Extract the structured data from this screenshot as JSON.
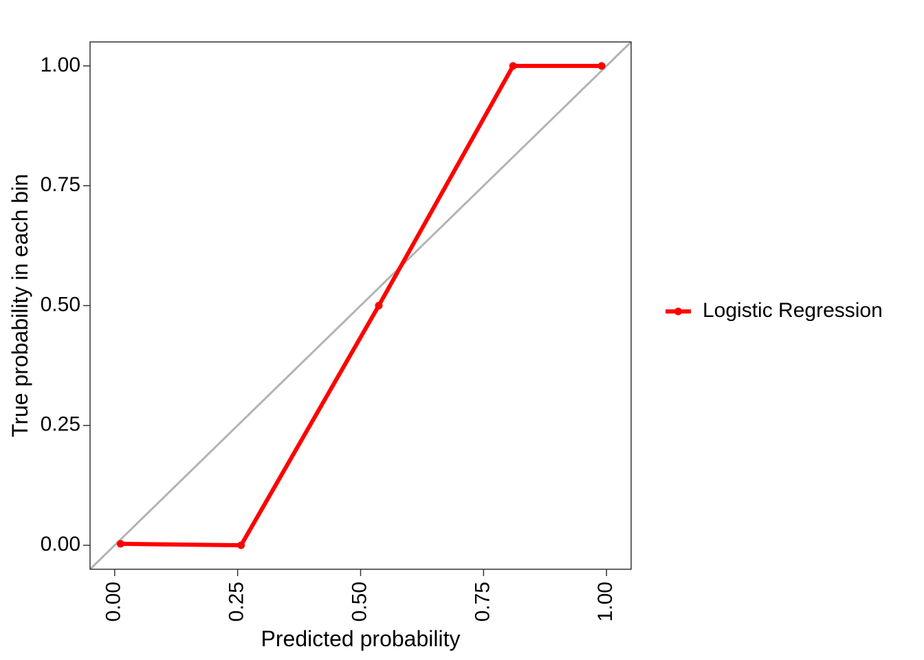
{
  "chart_data": {
    "type": "line",
    "title": "",
    "xlabel": "Predicted probability",
    "ylabel": "True probability in each bin",
    "xlim": [
      -0.05,
      1.05
    ],
    "ylim": [
      -0.05,
      1.05
    ],
    "x_ticks": [
      "0.00",
      "0.25",
      "0.50",
      "0.75",
      "1.00"
    ],
    "y_ticks": [
      "0.00",
      "0.25",
      "0.50",
      "0.75",
      "1.00"
    ],
    "grid": false,
    "legend_position": "right",
    "reference_line": {
      "from": [
        -0.05,
        -0.05
      ],
      "to": [
        1.05,
        1.05
      ],
      "color": "#b3b3b3"
    },
    "series": [
      {
        "name": "Logistic Regression",
        "color": "#ff0000",
        "x": [
          0.012,
          0.257,
          0.537,
          0.81,
          0.99
        ],
        "y": [
          0.003,
          0.0,
          0.5,
          1.0,
          1.0
        ]
      }
    ]
  }
}
